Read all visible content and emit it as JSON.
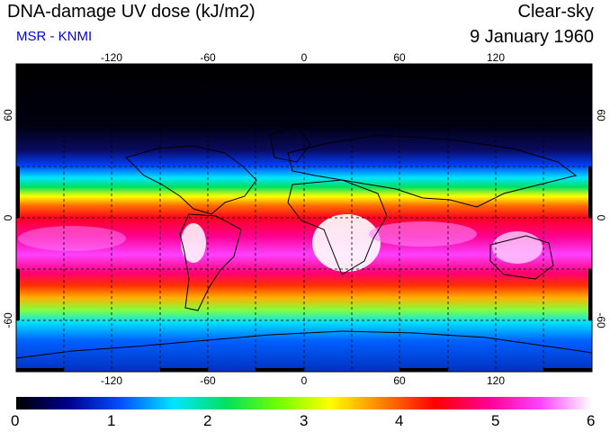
{
  "header": {
    "title": "DNA-damage UV dose (kJ/m2)",
    "subtitle": "MSR - KNMI",
    "sky": "Clear-sky",
    "date": "9 January 1960"
  },
  "map": {
    "lon_ticks": [
      "-120",
      "-60",
      "0",
      "60",
      "120"
    ],
    "lat_ticks": [
      "60",
      "0",
      "-60"
    ],
    "lon_range": [
      -180,
      180
    ],
    "lat_range": [
      -90,
      90
    ]
  },
  "colorbar": {
    "labels": [
      "0",
      "1",
      "2",
      "3",
      "4",
      "5",
      "6"
    ],
    "colors": [
      "#000000",
      "#000090",
      "#0050ff",
      "#00e5ff",
      "#00e060",
      "#70ff00",
      "#ffff00",
      "#ff8000",
      "#ff0000",
      "#ff0090",
      "#ff40ff",
      "#ffffff"
    ]
  }
}
